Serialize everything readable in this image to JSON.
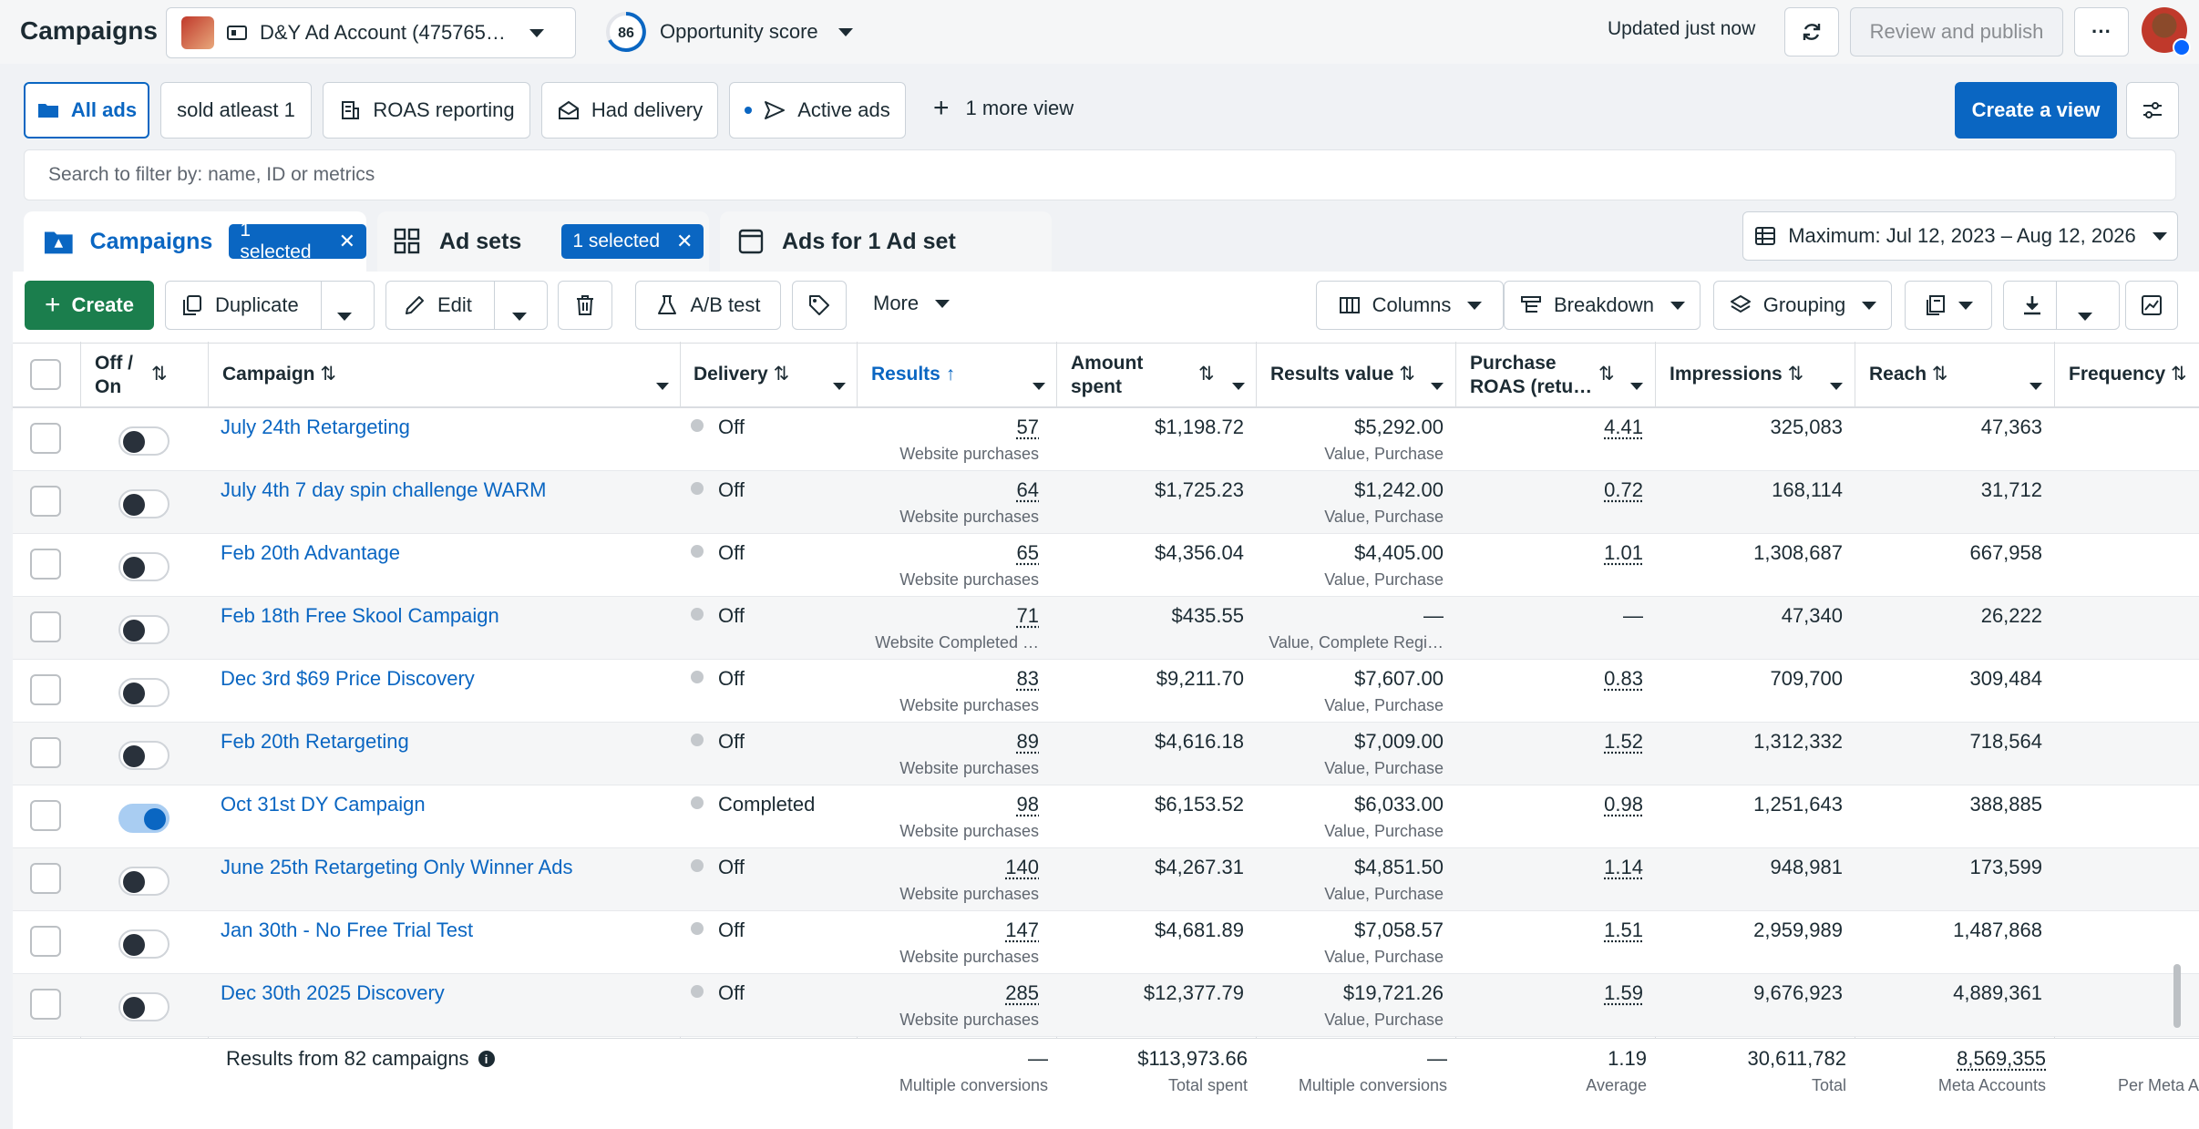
{
  "topbar": {
    "title": "Campaigns",
    "account_name": "D&Y Ad Account (475765…",
    "opportunity_score": "86",
    "opportunity_label": "Opportunity score",
    "updated_text": "Updated just now",
    "review_publish": "Review and publish",
    "more": "···"
  },
  "views": {
    "items": [
      "All ads",
      "sold atleast 1",
      "ROAS reporting",
      "Had delivery",
      "Active ads"
    ],
    "more_view": "1 more view",
    "create_view": "Create a view"
  },
  "search": {
    "placeholder": "Search to filter by: name, ID or metrics"
  },
  "tabs": {
    "campaigns": "Campaigns",
    "campaigns_selected": "1 selected",
    "adsets": "Ad sets",
    "adsets_selected": "1 selected",
    "ads": "Ads for 1 Ad set",
    "date_range": "Maximum: Jul 12, 2023 – Aug 12, 2026"
  },
  "toolbar": {
    "create": "Create",
    "duplicate": "Duplicate",
    "edit": "Edit",
    "ab_test": "A/B test",
    "more": "More",
    "columns": "Columns",
    "breakdown": "Breakdown",
    "grouping": "Grouping"
  },
  "headers": {
    "off_on_1": "Off /",
    "off_on_2": "On",
    "campaign": "Campaign",
    "delivery": "Delivery",
    "results": "Results",
    "amount_1": "Amount",
    "amount_2": "spent",
    "results_value": "Results value",
    "roas_1": "Purchase",
    "roas_2": "ROAS (retu…",
    "impressions": "Impressions",
    "reach": "Reach",
    "frequency": "Frequency"
  },
  "rows": [
    {
      "name": "July 24th Retargeting",
      "on": false,
      "delivery": "Off",
      "results": "57",
      "results_sub": "Website purchases",
      "spent": "$1,198.72",
      "value": "$5,292.00",
      "value_sub": "Value, Purchase",
      "roas": "4.41",
      "impressions": "325,083",
      "reach": "47,363"
    },
    {
      "name": "July 4th 7 day spin challenge WARM",
      "on": false,
      "delivery": "Off",
      "results": "64",
      "results_sub": "Website purchases",
      "spent": "$1,725.23",
      "value": "$1,242.00",
      "value_sub": "Value, Purchase",
      "roas": "0.72",
      "impressions": "168,114",
      "reach": "31,712"
    },
    {
      "name": "Feb 20th Advantage",
      "on": false,
      "delivery": "Off",
      "results": "65",
      "results_sub": "Website purchases",
      "spent": "$4,356.04",
      "value": "$4,405.00",
      "value_sub": "Value, Purchase",
      "roas": "1.01",
      "impressions": "1,308,687",
      "reach": "667,958"
    },
    {
      "name": "Feb 18th Free Skool Campaign",
      "on": false,
      "delivery": "Off",
      "results": "71",
      "results_sub": "Website Completed …",
      "spent": "$435.55",
      "value": "—",
      "value_sub": "Value, Complete Regi…",
      "roas": "—",
      "impressions": "47,340",
      "reach": "26,222"
    },
    {
      "name": "Dec 3rd $69 Price Discovery",
      "on": false,
      "delivery": "Off",
      "results": "83",
      "results_sub": "Website purchases",
      "spent": "$9,211.70",
      "value": "$7,607.00",
      "value_sub": "Value, Purchase",
      "roas": "0.83",
      "impressions": "709,700",
      "reach": "309,484"
    },
    {
      "name": "Feb 20th Retargeting",
      "on": false,
      "delivery": "Off",
      "results": "89",
      "results_sub": "Website purchases",
      "spent": "$4,616.18",
      "value": "$7,009.00",
      "value_sub": "Value, Purchase",
      "roas": "1.52",
      "impressions": "1,312,332",
      "reach": "718,564"
    },
    {
      "name": "Oct 31st DY Campaign",
      "on": true,
      "delivery": "Completed",
      "results": "98",
      "results_sub": "Website purchases",
      "spent": "$6,153.52",
      "value": "$6,033.00",
      "value_sub": "Value, Purchase",
      "roas": "0.98",
      "impressions": "1,251,643",
      "reach": "388,885"
    },
    {
      "name": "June 25th Retargeting Only Winner Ads",
      "on": false,
      "delivery": "Off",
      "results": "140",
      "results_sub": "Website purchases",
      "spent": "$4,267.31",
      "value": "$4,851.50",
      "value_sub": "Value, Purchase",
      "roas": "1.14",
      "impressions": "948,981",
      "reach": "173,599"
    },
    {
      "name": "Jan 30th - No Free Trial Test",
      "on": false,
      "delivery": "Off",
      "results": "147",
      "results_sub": "Website purchases",
      "spent": "$4,681.89",
      "value": "$7,058.57",
      "value_sub": "Value, Purchase",
      "roas": "1.51",
      "impressions": "2,959,989",
      "reach": "1,487,868"
    },
    {
      "name": "Dec 30th 2025 Discovery",
      "on": false,
      "delivery": "Off",
      "results": "285",
      "results_sub": "Website purchases",
      "spent": "$12,377.79",
      "value": "$19,721.26",
      "value_sub": "Value, Purchase",
      "roas": "1.59",
      "impressions": "9,676,923",
      "reach": "4,889,361"
    }
  ],
  "summary": {
    "label": "Results from 82 campaigns",
    "results": "—",
    "results_sub": "Multiple conversions",
    "spent": "$113,973.66",
    "spent_sub": "Total spent",
    "value": "—",
    "value_sub": "Multiple conversions",
    "roas": "1.19",
    "roas_sub": "Average",
    "impressions": "30,611,782",
    "impressions_sub": "Total",
    "reach": "8,569,355",
    "reach_sub": "Meta Accounts",
    "frequency_sub": "Per Meta A"
  },
  "colors": {
    "accent": "#0a66c2",
    "create_green": "#1b7e4d"
  }
}
